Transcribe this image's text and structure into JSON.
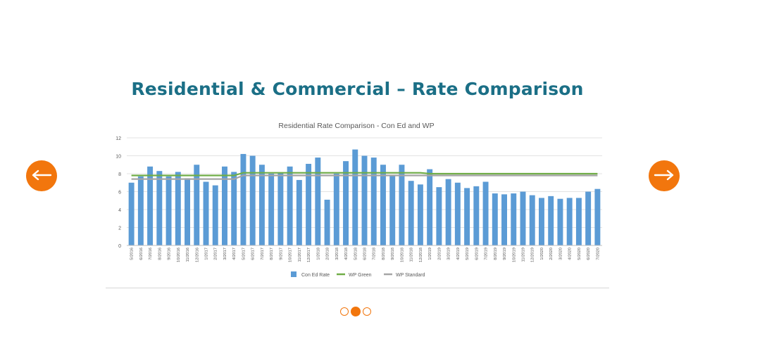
{
  "page": {
    "title": "Residential & Commercial – Rate Comparison"
  },
  "nav": {
    "prev_icon": "arrow-left-icon",
    "next_icon": "arrow-right-icon",
    "accent_color": "#f2760d"
  },
  "carousel": {
    "slide_count": 3,
    "active_index": 1
  },
  "chart_data": {
    "type": "bar",
    "title": "Residential Rate Comparison - Con Ed and WP",
    "xlabel": "",
    "ylabel": "",
    "ylim": [
      0,
      12
    ],
    "yticks": [
      0,
      2,
      4,
      6,
      8,
      10,
      12
    ],
    "grid": true,
    "legend_position": "bottom",
    "categories": [
      "5/2016",
      "6/2016",
      "7/2016",
      "8/2016",
      "9/2016",
      "10/2016",
      "11/2016",
      "12/2016",
      "1/2017",
      "2/2017",
      "3/2017",
      "4/2017",
      "5/2017",
      "6/2017",
      "7/2017",
      "8/2017",
      "9/2017",
      "10/2017",
      "11/2017",
      "12/2017",
      "1/2018",
      "2/2018",
      "3/2018",
      "4/2018",
      "5/2018",
      "6/2018",
      "7/2018",
      "8/2018",
      "9/2018",
      "10/2018",
      "11/2018",
      "12/2018",
      "1/2019",
      "2/2019",
      "3/2019",
      "4/2019",
      "5/2019",
      "6/2019",
      "7/2019",
      "8/2019",
      "9/2019",
      "10/2019",
      "11/2019",
      "12/2019",
      "1/2020",
      "2/2020",
      "3/2020",
      "4/2020",
      "5/2020",
      "6/2020",
      "7/2020"
    ],
    "series": [
      {
        "name": "Con Ed Rate",
        "kind": "bar",
        "color": "#5b9bd5",
        "values": [
          7.0,
          7.7,
          8.8,
          8.3,
          7.7,
          8.2,
          7.5,
          9.0,
          7.1,
          6.7,
          8.8,
          8.2,
          10.2,
          10.0,
          9.0,
          8.0,
          8.1,
          8.8,
          7.3,
          9.1,
          9.8,
          5.1,
          8.0,
          9.4,
          10.7,
          10.0,
          9.8,
          9.0,
          7.8,
          9.0,
          7.2,
          6.8,
          8.5,
          6.5,
          7.4,
          7.0,
          6.4,
          6.6,
          7.1,
          5.8,
          5.7,
          5.8,
          6.0,
          5.6,
          5.3,
          5.5,
          5.2,
          5.3,
          5.3,
          6.0,
          6.3
        ]
      },
      {
        "name": "WP Green",
        "kind": "line",
        "color": "#70ad47",
        "values": [
          7.8,
          7.8,
          7.8,
          7.8,
          7.8,
          7.8,
          7.8,
          7.8,
          7.8,
          7.8,
          7.8,
          7.8,
          8.1,
          8.1,
          8.1,
          8.1,
          8.1,
          8.1,
          8.1,
          8.1,
          8.1,
          8.1,
          8.1,
          8.1,
          8.1,
          8.1,
          8.1,
          8.1,
          8.1,
          8.1,
          8.1,
          8.1,
          8.0,
          8.0,
          8.0,
          8.0,
          8.0,
          8.0,
          8.0,
          8.0,
          8.0,
          8.0,
          8.0,
          8.0,
          8.0,
          8.0,
          8.0,
          8.0,
          8.0,
          8.0,
          8.0
        ]
      },
      {
        "name": "WP Standard",
        "kind": "line",
        "color": "#a5a5a5",
        "values": [
          7.4,
          7.4,
          7.4,
          7.4,
          7.4,
          7.4,
          7.4,
          7.4,
          7.4,
          7.4,
          7.4,
          7.4,
          7.8,
          7.8,
          7.8,
          7.8,
          7.8,
          7.8,
          7.8,
          7.8,
          7.8,
          7.8,
          7.8,
          7.8,
          7.8,
          7.8,
          7.8,
          7.8,
          7.8,
          7.8,
          7.8,
          7.8,
          7.8,
          7.8,
          7.8,
          7.8,
          7.8,
          7.8,
          7.8,
          7.8,
          7.8,
          7.8,
          7.8,
          7.8,
          7.8,
          7.8,
          7.8,
          7.8,
          7.8,
          7.8,
          7.8
        ]
      }
    ]
  }
}
